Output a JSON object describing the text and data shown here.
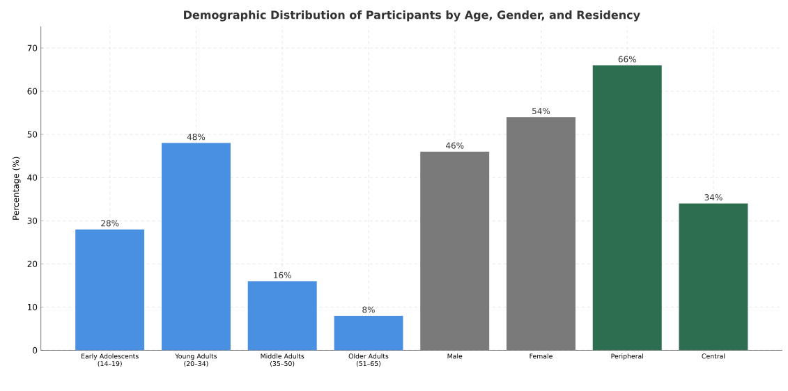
{
  "chart_data": {
    "type": "bar",
    "title": "Demographic Distribution of Participants by Age, Gender, and Residency",
    "ylabel": "Percentage (%)",
    "categories": [
      "Early Adolescents (14–19)",
      "Young Adults (20–34)",
      "Middle Adults (35–50)",
      "Older Adults (51–65)",
      "Male",
      "Female",
      "Peripheral",
      "Central"
    ],
    "values": [
      28,
      48,
      16,
      8,
      46,
      54,
      66,
      34
    ],
    "value_labels": [
      "28%",
      "48%",
      "16%",
      "8%",
      "46%",
      "54%",
      "66%",
      "34%"
    ],
    "colors": [
      "#4a90e2",
      "#4a90e2",
      "#4a90e2",
      "#4a90e2",
      "#7a7a7a",
      "#7a7a7a",
      "#2d6e50",
      "#2d6e50"
    ],
    "ylim": [
      0,
      75
    ],
    "yticks": [
      0,
      10,
      20,
      30,
      40,
      50,
      60,
      70
    ],
    "grid": true
  }
}
